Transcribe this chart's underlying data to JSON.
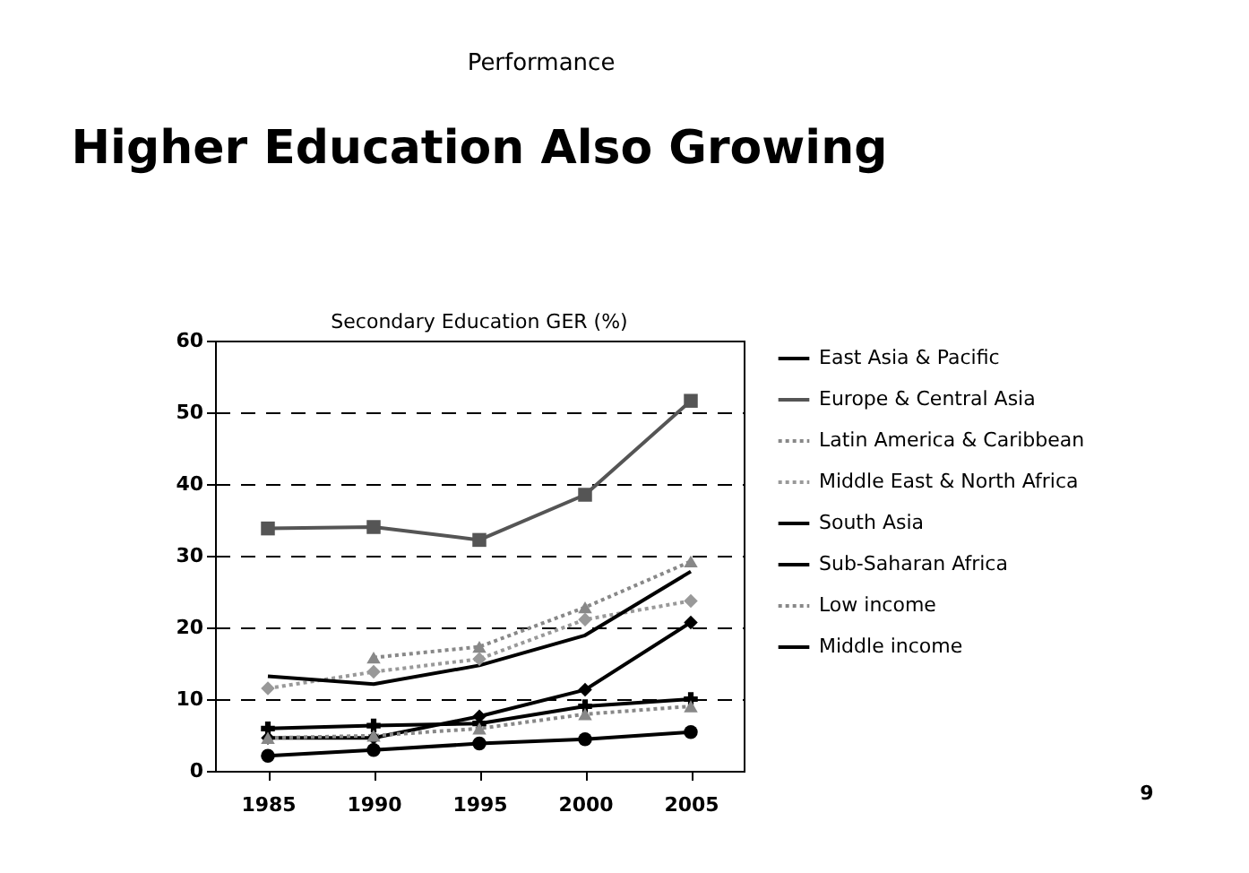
{
  "chart_data": {
    "type": "line",
    "title": "Higher Education Also Growing",
    "subtitle": "Secondary Education GER (%)",
    "categories": [
      "1985",
      "1990",
      "1995",
      "2000",
      "2005"
    ],
    "series": [
      {
        "name": "East Asia & Pacific",
        "color": "#000000",
        "marker": "diamond",
        "line_style": "solid",
        "values": [
          4.6,
          4.6,
          7.6,
          11.3,
          20.7
        ]
      },
      {
        "name": "Europe & Central Asia",
        "color": "#555555",
        "marker": "square",
        "line_style": "solid",
        "values": [
          33.8,
          34.0,
          32.2,
          38.5,
          51.6
        ]
      },
      {
        "name": "Latin America & Caribbean",
        "color": "#888888",
        "marker": "triangle",
        "line_style": "dotted",
        "values": [
          null,
          15.8,
          17.3,
          22.8,
          29.2
        ]
      },
      {
        "name": "Middle East & North Africa",
        "color": "#999999",
        "marker": "diamond",
        "line_style": "dotted",
        "values": [
          11.5,
          13.8,
          15.6,
          21.1,
          23.7
        ]
      },
      {
        "name": "South Asia",
        "color": "#000000",
        "marker": "cross",
        "line_style": "solid",
        "values": [
          5.9,
          6.3,
          6.6,
          9.0,
          10.0
        ]
      },
      {
        "name": "Sub-Saharan Africa",
        "color": "#000000",
        "marker": "circle",
        "line_style": "solid",
        "values": [
          2.1,
          2.9,
          3.8,
          4.4,
          5.4
        ]
      },
      {
        "name": "Low income",
        "color": "#888888",
        "marker": "triangle",
        "line_style": "dotted",
        "values": [
          4.6,
          4.9,
          5.9,
          7.9,
          9.0
        ]
      },
      {
        "name": "Middle income",
        "color": "#000000",
        "marker": "none",
        "line_style": "solid",
        "values": [
          13.2,
          12.1,
          14.7,
          18.9,
          27.8
        ]
      }
    ],
    "ylim": [
      0,
      60
    ],
    "yticks": [
      0,
      10,
      20,
      30,
      40,
      50,
      60
    ],
    "grid": "y",
    "legend": "right",
    "annotations": [
      "Performance",
      "9"
    ]
  }
}
